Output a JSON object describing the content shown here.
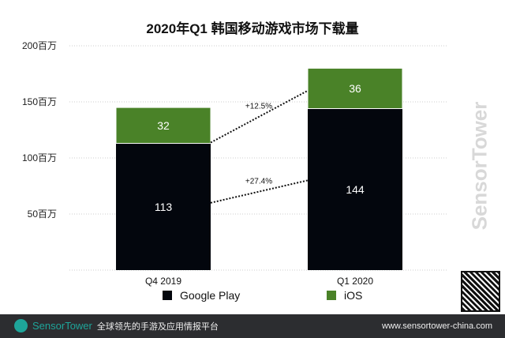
{
  "chart_data": {
    "type": "bar",
    "stacked": true,
    "title": "2020年Q1 韩国移动游戏市场下载量",
    "categories": [
      "Q4  2019",
      "Q1 2020"
    ],
    "series": [
      {
        "name": "Google Play",
        "values": [
          113,
          144
        ],
        "color": "#03060d"
      },
      {
        "name": "iOS",
        "values": [
          32,
          36
        ],
        "color": "#4a8228"
      }
    ],
    "yticks": [
      50,
      100,
      150,
      200
    ],
    "ytick_labels": [
      "50百万",
      "100百万",
      "150百万",
      "200百万"
    ],
    "ylim": [
      0,
      200
    ],
    "grid": true,
    "legend": "bottom",
    "annotations": [
      "+27.4%",
      "+12.5%"
    ]
  },
  "watermark": "SensorTower",
  "footer": {
    "brand": "SensorTower",
    "slogan": "全球领先的手游及应用情报平台",
    "url": "www.sensortower-china.com"
  }
}
